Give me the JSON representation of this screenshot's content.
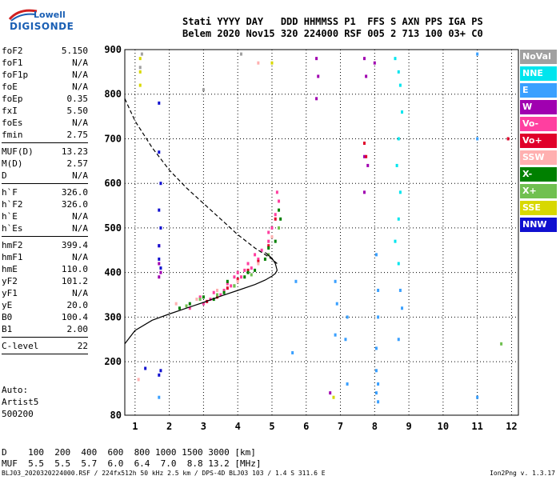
{
  "logo": {
    "line1": "Lowell",
    "line2": "DIGISONDE"
  },
  "header": {
    "line1": "Stati YYYY DAY   DDD HHMMSS P1  FFS S AXN PPS IGA PS",
    "line2": "Belem 2020 Nov15 320 224000 RSF 005 2 713 100 03+ C0"
  },
  "params_group1": [
    {
      "label": "foF2",
      "value": "5.150"
    },
    {
      "label": "foF1",
      "value": "N/A"
    },
    {
      "label": "foF1p",
      "value": "N/A"
    },
    {
      "label": "foE",
      "value": "N/A"
    },
    {
      "label": "foEp",
      "value": "0.35"
    },
    {
      "label": "fxI",
      "value": "5.50"
    },
    {
      "label": "foEs",
      "value": "N/A"
    },
    {
      "label": "fmin",
      "value": "2.75"
    }
  ],
  "params_group2": [
    {
      "label": "MUF(D)",
      "value": "13.23"
    },
    {
      "label": "M(D)",
      "value": "2.57"
    },
    {
      "label": "D",
      "value": "N/A"
    }
  ],
  "params_group3": [
    {
      "label": "h`F",
      "value": "326.0"
    },
    {
      "label": "h`F2",
      "value": "326.0"
    },
    {
      "label": "h`E",
      "value": "N/A"
    },
    {
      "label": "h`Es",
      "value": "N/A"
    }
  ],
  "params_group4": [
    {
      "label": "hmF2",
      "value": "399.4"
    },
    {
      "label": "hmF1",
      "value": "N/A"
    },
    {
      "label": "hmE",
      "value": "110.0"
    },
    {
      "label": "yF2",
      "value": "101.2"
    },
    {
      "label": "yF1",
      "value": "N/A"
    },
    {
      "label": "yE",
      "value": "20.0"
    },
    {
      "label": "B0",
      "value": "100.4"
    },
    {
      "label": "B1",
      "value": "2.00"
    }
  ],
  "params_group5": [
    {
      "label": "C-level",
      "value": "22"
    }
  ],
  "auto": {
    "line1": "Auto:",
    "line2": "Artist5",
    "line3": "500200"
  },
  "legend": [
    {
      "label": "NoVal",
      "color": "#a0a0a0"
    },
    {
      "label": "NNE",
      "color": "#00e5ee"
    },
    {
      "label": "E",
      "color": "#3aa0ff"
    },
    {
      "label": "W",
      "color": "#a000b0"
    },
    {
      "label": "Vo-",
      "color": "#ff3fa0"
    },
    {
      "label": "Vo+",
      "color": "#e0002a"
    },
    {
      "label": "SSW",
      "color": "#ffb0b0"
    },
    {
      "label": "X-",
      "color": "#008000"
    },
    {
      "label": "X+",
      "color": "#70c050"
    },
    {
      "label": "SSE",
      "color": "#d8d800"
    },
    {
      "label": "NNW",
      "color": "#1010d0"
    }
  ],
  "muf_table": {
    "line1": "D    100  200  400  600  800 1000 1500 3000 [km]",
    "line2": "MUF  5.5  5.5  5.7  6.0  6.4  7.0  8.8 13.2 [MHz]"
  },
  "footer": "BLJ03_2020320224000.RSF / 224fx512h 50 kHz 2.5 km / DPS-4D BLJ03 103 / 1.4 S 311.6 E",
  "version": "Ion2Png v. 1.3.17",
  "chart_data": {
    "type": "scatter",
    "xlim": [
      0.7,
      12.2
    ],
    "ylim": [
      80,
      900
    ],
    "x_ticks": [
      1,
      2,
      3,
      4,
      5,
      6,
      7,
      8,
      9,
      10,
      11,
      12
    ],
    "y_ticks": [
      80,
      200,
      300,
      400,
      500,
      600,
      700,
      800,
      900
    ],
    "grid": true,
    "legend_placement": "right",
    "profile_curve": {
      "x": [
        0.7,
        1.0,
        1.5,
        2.0,
        2.5,
        3.0,
        3.5,
        4.0,
        4.5,
        4.8,
        5.0,
        5.1,
        5.15,
        5.1,
        5.0,
        4.8
      ],
      "y": [
        240,
        270,
        293,
        307,
        320,
        333,
        347,
        360,
        373,
        383,
        392,
        398,
        405,
        420,
        432,
        445
      ]
    },
    "dashed_curve": {
      "x": [
        0.7,
        1.0,
        1.5,
        2.0,
        2.5,
        3.0,
        3.5,
        4.0,
        4.5,
        5.0,
        5.15
      ],
      "y": [
        790,
        740,
        680,
        630,
        590,
        555,
        520,
        485,
        455,
        430,
        420
      ]
    },
    "series": [
      {
        "name": "NNE",
        "color": "#00e5ee",
        "x": [
          8.6,
          8.7,
          8.75,
          8.8,
          8.7,
          8.65,
          8.75,
          8.7,
          8.6,
          8.7
        ],
        "y": [
          880,
          850,
          820,
          760,
          700,
          640,
          580,
          520,
          470,
          420
        ]
      },
      {
        "name": "E",
        "color": "#3aa0ff",
        "x": [
          6.85,
          6.9,
          6.85,
          7.2,
          7.15,
          7.2,
          8.05,
          8.1,
          8.05,
          8.1,
          8.05,
          8.1,
          8.1,
          8.05,
          8.75,
          8.8,
          8.7,
          11.0,
          11.0,
          11.0,
          5.6,
          5.7,
          1.7
        ],
        "y": [
          380,
          330,
          260,
          300,
          250,
          150,
          180,
          150,
          130,
          110,
          230,
          300,
          360,
          440,
          360,
          320,
          250,
          700,
          120,
          890,
          220,
          380,
          120
        ]
      },
      {
        "name": "W",
        "color": "#a000b0",
        "x": [
          1.7,
          1.7,
          1.75,
          1.7,
          6.3,
          6.35,
          6.3,
          7.7,
          7.75,
          7.7,
          7.8,
          7.7,
          8.0,
          6.7
        ],
        "y": [
          460,
          420,
          400,
          390,
          880,
          840,
          790,
          880,
          840,
          660,
          640,
          580,
          870,
          130
        ]
      },
      {
        "name": "Vo-",
        "color": "#ff3fa0",
        "x": [
          3.2,
          3.5,
          3.8,
          4.1,
          4.4,
          4.6,
          4.9,
          5.0,
          5.1,
          5.2,
          4.0,
          3.6,
          3.0,
          2.6,
          4.7,
          4.3,
          3.9,
          3.3,
          5.15,
          4.9,
          4.5,
          4.2,
          3.7,
          2.9
        ],
        "y": [
          340,
          350,
          370,
          390,
          410,
          430,
          470,
          500,
          530,
          560,
          400,
          360,
          330,
          320,
          450,
          420,
          390,
          355,
          580,
          490,
          440,
          405,
          375,
          345
        ]
      },
      {
        "name": "Vo+",
        "color": "#e0002a",
        "x": [
          3.1,
          3.4,
          3.7,
          4.0,
          4.3,
          4.6,
          4.9,
          5.1,
          7.7,
          7.75,
          11.9
        ],
        "y": [
          335,
          345,
          365,
          385,
          405,
          425,
          460,
          520,
          690,
          660,
          700
        ]
      },
      {
        "name": "SSW",
        "color": "#ffb0b0",
        "x": [
          2.2,
          2.8,
          3.4,
          4.0,
          4.6,
          5.0,
          4.6,
          1.1
        ],
        "y": [
          330,
          340,
          360,
          380,
          420,
          480,
          870,
          160
        ]
      },
      {
        "name": "X-",
        "color": "#008000",
        "x": [
          3.3,
          3.6,
          3.9,
          4.2,
          4.5,
          4.8,
          5.1,
          5.25,
          2.3,
          2.6,
          3.0,
          3.7,
          4.3,
          4.9,
          5.2
        ],
        "y": [
          340,
          355,
          370,
          390,
          405,
          430,
          470,
          520,
          320,
          330,
          345,
          380,
          400,
          455,
          540
        ]
      },
      {
        "name": "X+",
        "color": "#70c050",
        "x": [
          2.5,
          2.9,
          3.4,
          3.9,
          4.4,
          4.9,
          5.2,
          11.7
        ],
        "y": [
          325,
          340,
          350,
          370,
          395,
          440,
          500,
          240
        ]
      },
      {
        "name": "SSE",
        "color": "#d8d800",
        "x": [
          1.15,
          1.15,
          1.15,
          5.0,
          6.8
        ],
        "y": [
          880,
          850,
          820,
          870,
          120
        ]
      },
      {
        "name": "NNW",
        "color": "#1010d0",
        "x": [
          1.7,
          1.7,
          1.75,
          1.7,
          1.75,
          1.7,
          1.7,
          1.75,
          1.75,
          1.7,
          1.3
        ],
        "y": [
          780,
          670,
          600,
          540,
          500,
          460,
          430,
          410,
          180,
          170,
          185
        ]
      },
      {
        "name": "NoVal",
        "color": "#a0a0a0",
        "x": [
          1.15,
          1.2,
          3.0,
          4.1
        ],
        "y": [
          860,
          890,
          810,
          890
        ]
      }
    ]
  }
}
